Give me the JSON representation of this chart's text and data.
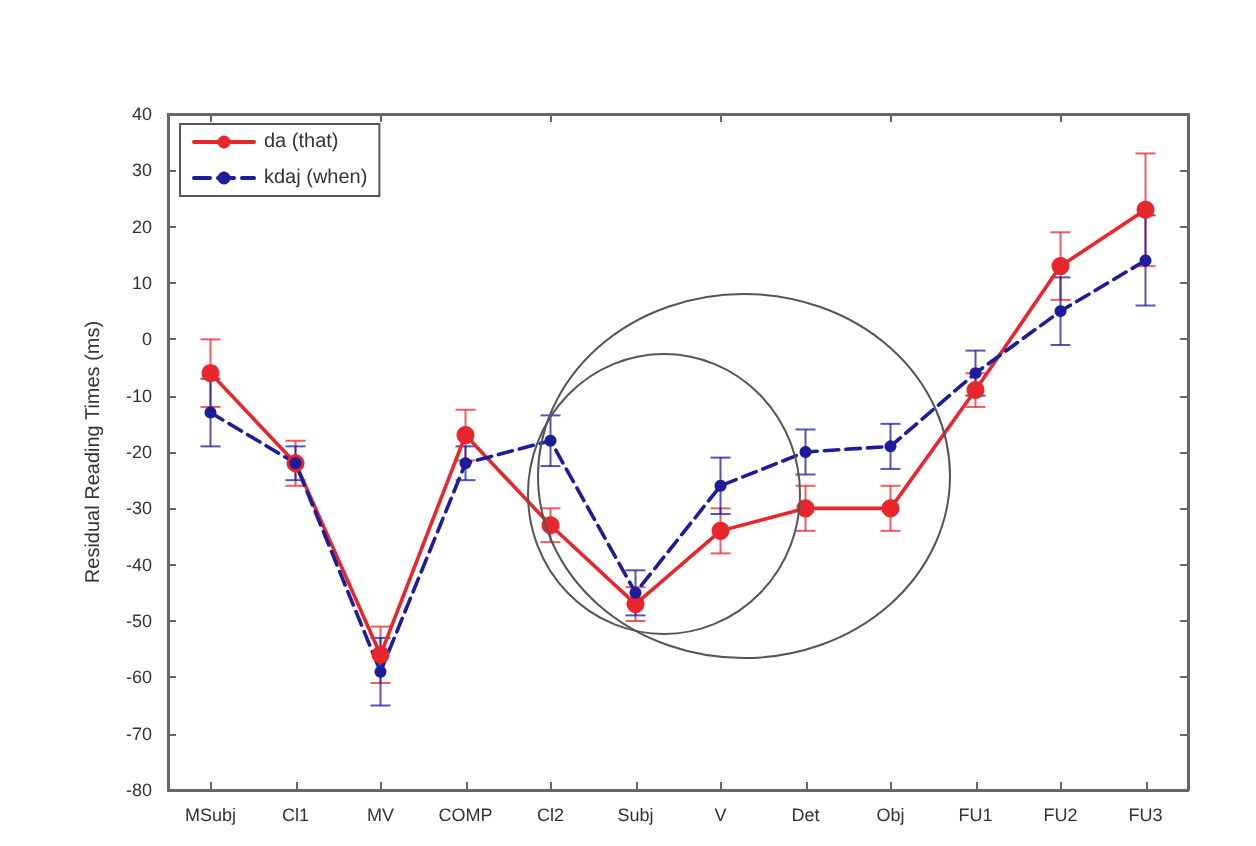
{
  "chart_data": {
    "type": "line",
    "ylabel": "Residual Reading Times (ms)",
    "categories": [
      "MSubj",
      "Cl1",
      "MV",
      "COMP",
      "Cl2",
      "Subj",
      "V",
      "Det",
      "Obj",
      "FU1",
      "FU2",
      "FU3"
    ],
    "series": [
      {
        "name": "da (that)",
        "color": "#e8262b",
        "line_style": "solid",
        "values": [
          -6,
          -22,
          -56,
          -17,
          -33,
          -47,
          -34,
          -30,
          -30,
          -9,
          13,
          23
        ],
        "errors": [
          6,
          4,
          5,
          4.5,
          3,
          3,
          4,
          4,
          4,
          3,
          6,
          10
        ]
      },
      {
        "name": "kdaj (when)",
        "color": "#1c1c9c",
        "line_style": "dashed",
        "values": [
          -13,
          -22,
          -59,
          -22,
          -18,
          -45,
          -26,
          -20,
          -19,
          -6,
          5,
          14
        ],
        "errors": [
          6,
          3,
          6,
          3,
          4.5,
          4,
          5,
          4,
          4,
          4,
          6,
          8
        ]
      }
    ],
    "ylim": [
      -80,
      40
    ],
    "yticks": [
      -80,
      -70,
      -60,
      -50,
      -40,
      -30,
      -20,
      -10,
      0,
      10,
      20,
      30,
      40
    ],
    "grid": false,
    "legend": "top left",
    "marker": "circle"
  }
}
